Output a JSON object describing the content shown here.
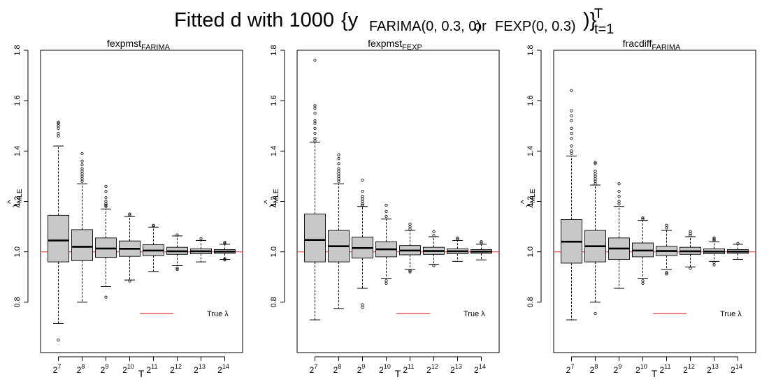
{
  "title": {
    "main": "Fitted d with 1000",
    "set": "{y",
    "model_a": "FARIMA(0, 0.3, 0)",
    "or_word": "or",
    "model_b": "FEXP(0, 0.3)",
    "close": ")}",
    "sup": "T",
    "sub": "t=1"
  },
  "chart_data": [
    {
      "type": "box",
      "title_base": "fexpmst",
      "title_sub": "FARIMA",
      "xlabel": "T",
      "ylabel_hat": "^",
      "ylabel_base": "λ",
      "ylabel_sub": "MLE",
      "ylim": [
        0.6,
        1.8
      ],
      "yticks": [
        "0.8",
        "1.0",
        "1.2",
        "1.4",
        "1.6",
        "1.8"
      ],
      "reference_line": {
        "y": 1.0,
        "color": "#e8474a"
      },
      "legend": {
        "label": "True λ",
        "color": "#e8474a",
        "placement": "bottom-right"
      },
      "categories": [
        {
          "base": "2",
          "exp": "7"
        },
        {
          "base": "2",
          "exp": "8"
        },
        {
          "base": "2",
          "exp": "9"
        },
        {
          "base": "2",
          "exp": "10"
        },
        {
          "base": "2",
          "exp": "11"
        },
        {
          "base": "2",
          "exp": "12"
        },
        {
          "base": "2",
          "exp": "13"
        },
        {
          "base": "2",
          "exp": "14"
        }
      ],
      "boxes": [
        {
          "min": 0.715,
          "q1": 0.96,
          "median": 1.045,
          "q3": 1.145,
          "max": 1.42,
          "outliers": [
            1.46,
            1.47,
            1.49,
            1.5,
            1.51,
            1.515,
            0.65
          ]
        },
        {
          "min": 0.8,
          "q1": 0.965,
          "median": 1.02,
          "q3": 1.088,
          "max": 1.27,
          "outliers": [
            1.28,
            1.29,
            1.3,
            1.31,
            1.32,
            1.33,
            1.345,
            1.36,
            1.39
          ]
        },
        {
          "min": 0.862,
          "q1": 0.978,
          "median": 1.013,
          "q3": 1.055,
          "max": 1.17,
          "outliers": [
            1.18,
            1.185,
            1.19,
            1.2,
            1.215,
            1.24,
            1.26,
            0.82
          ]
        },
        {
          "min": 0.888,
          "q1": 0.982,
          "median": 1.012,
          "q3": 1.043,
          "max": 1.14,
          "outliers": [
            1.145,
            1.15,
            0.884
          ]
        },
        {
          "min": 0.922,
          "q1": 0.985,
          "median": 1.005,
          "q3": 1.028,
          "max": 1.098,
          "outliers": [
            1.102,
            1.105
          ]
        },
        {
          "min": 0.945,
          "q1": 0.99,
          "median": 1.002,
          "q3": 1.018,
          "max": 1.063,
          "outliers": [
            1.067,
            0.935,
            0.93
          ]
        },
        {
          "min": 0.96,
          "q1": 0.992,
          "median": 1.002,
          "q3": 1.012,
          "max": 1.045,
          "outliers": [
            1.052
          ]
        },
        {
          "min": 0.97,
          "q1": 0.994,
          "median": 1.001,
          "q3": 1.009,
          "max": 1.03,
          "outliers": [
            1.033,
            1.038,
            0.972,
            0.968
          ]
        }
      ]
    },
    {
      "type": "box",
      "title_base": "fexpmst",
      "title_sub": "FEXP",
      "xlabel": "T",
      "ylabel_hat": "^",
      "ylabel_base": "λ",
      "ylabel_sub": "MLE",
      "ylim": [
        0.6,
        1.8
      ],
      "yticks": [
        "0.8",
        "1.0",
        "1.2",
        "1.4",
        "1.6",
        "1.8"
      ],
      "reference_line": {
        "y": 1.0,
        "color": "#e8474a"
      },
      "legend": {
        "label": "True λ",
        "color": "#e8474a",
        "placement": "bottom-right"
      },
      "categories": [
        {
          "base": "2",
          "exp": "7"
        },
        {
          "base": "2",
          "exp": "8"
        },
        {
          "base": "2",
          "exp": "9"
        },
        {
          "base": "2",
          "exp": "10"
        },
        {
          "base": "2",
          "exp": "11"
        },
        {
          "base": "2",
          "exp": "12"
        },
        {
          "base": "2",
          "exp": "13"
        },
        {
          "base": "2",
          "exp": "14"
        }
      ],
      "boxes": [
        {
          "min": 0.73,
          "q1": 0.96,
          "median": 1.047,
          "q3": 1.15,
          "max": 1.435,
          "outliers": [
            1.44,
            1.45,
            1.47,
            1.49,
            1.51,
            1.52,
            1.55,
            1.57,
            1.58,
            1.76
          ]
        },
        {
          "min": 0.775,
          "q1": 0.96,
          "median": 1.022,
          "q3": 1.085,
          "max": 1.27,
          "outliers": [
            1.28,
            1.29,
            1.3,
            1.31,
            1.32,
            1.33,
            1.35,
            1.37,
            1.385
          ]
        },
        {
          "min": 0.855,
          "q1": 0.975,
          "median": 1.015,
          "q3": 1.058,
          "max": 1.18,
          "outliers": [
            1.185,
            1.19,
            1.2,
            1.21,
            1.22,
            1.24,
            1.285,
            0.79,
            0.78
          ]
        },
        {
          "min": 0.895,
          "q1": 0.98,
          "median": 1.01,
          "q3": 1.04,
          "max": 1.13,
          "outliers": [
            1.14,
            1.16,
            1.185,
            0.885,
            0.875
          ]
        },
        {
          "min": 0.93,
          "q1": 0.988,
          "median": 1.005,
          "q3": 1.025,
          "max": 1.085,
          "outliers": [
            1.09,
            1.1,
            1.11,
            0.925,
            0.92
          ]
        },
        {
          "min": 0.95,
          "q1": 0.99,
          "median": 1.003,
          "q3": 1.018,
          "max": 1.06,
          "outliers": [
            1.065,
            1.08,
            0.945
          ]
        },
        {
          "min": 0.962,
          "q1": 0.992,
          "median": 1.002,
          "q3": 1.012,
          "max": 1.045,
          "outliers": [
            1.05,
            1.055
          ]
        },
        {
          "min": 0.968,
          "q1": 0.994,
          "median": 1.001,
          "q3": 1.009,
          "max": 1.03,
          "outliers": [
            1.035,
            1.04
          ]
        }
      ]
    },
    {
      "type": "box",
      "title_base": "fracdiff",
      "title_sub": "FARIMA",
      "xlabel": "T",
      "ylabel_hat": "^",
      "ylabel_base": "λ",
      "ylabel_sub": "MLE",
      "ylim": [
        0.6,
        1.8
      ],
      "yticks": [
        "0.8",
        "1.0",
        "1.2",
        "1.4",
        "1.6",
        "1.8"
      ],
      "reference_line": {
        "y": 1.0,
        "color": "#e8474a"
      },
      "legend": {
        "label": "True λ",
        "color": "#e8474a",
        "placement": "bottom-right"
      },
      "categories": [
        {
          "base": "2",
          "exp": "7"
        },
        {
          "base": "2",
          "exp": "8"
        },
        {
          "base": "2",
          "exp": "9"
        },
        {
          "base": "2",
          "exp": "10"
        },
        {
          "base": "2",
          "exp": "11"
        },
        {
          "base": "2",
          "exp": "12"
        },
        {
          "base": "2",
          "exp": "13"
        },
        {
          "base": "2",
          "exp": "14"
        }
      ],
      "boxes": [
        {
          "min": 0.73,
          "q1": 0.955,
          "median": 1.04,
          "q3": 1.128,
          "max": 1.38,
          "outliers": [
            1.39,
            1.4,
            1.42,
            1.45,
            1.47,
            1.49,
            1.52,
            1.54,
            1.56,
            1.64
          ]
        },
        {
          "min": 0.8,
          "q1": 0.96,
          "median": 1.022,
          "q3": 1.085,
          "max": 1.265,
          "outliers": [
            1.27,
            1.28,
            1.29,
            1.3,
            1.31,
            1.32,
            1.35,
            1.355,
            0.755
          ]
        },
        {
          "min": 0.855,
          "q1": 0.97,
          "median": 1.013,
          "q3": 1.055,
          "max": 1.18,
          "outliers": [
            1.19,
            1.2,
            1.22,
            1.24,
            1.27
          ]
        },
        {
          "min": 0.895,
          "q1": 0.98,
          "median": 1.005,
          "q3": 1.035,
          "max": 1.125,
          "outliers": [
            1.13,
            1.135,
            0.885,
            0.875
          ]
        },
        {
          "min": 0.93,
          "q1": 0.985,
          "median": 1.003,
          "q3": 1.022,
          "max": 1.085,
          "outliers": [
            1.095,
            1.105,
            0.918,
            0.912
          ]
        },
        {
          "min": 0.94,
          "q1": 0.99,
          "median": 1.002,
          "q3": 1.018,
          "max": 1.06,
          "outliers": [
            1.065,
            1.072,
            1.08,
            0.935
          ]
        },
        {
          "min": 0.962,
          "q1": 0.992,
          "median": 1.001,
          "q3": 1.012,
          "max": 1.04,
          "outliers": [
            1.045,
            1.05,
            1.055,
            0.958,
            0.948
          ]
        },
        {
          "min": 0.97,
          "q1": 0.994,
          "median": 1.001,
          "q3": 1.009,
          "max": 1.03,
          "outliers": [
            1.033
          ]
        }
      ]
    }
  ]
}
